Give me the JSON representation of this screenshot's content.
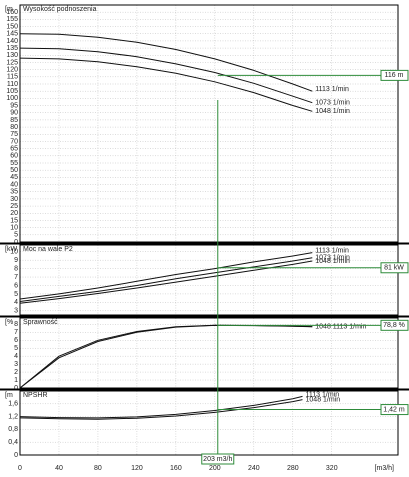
{
  "chart_data": [
    {
      "type": "line",
      "title": "Wysokość podnoszenia",
      "ylabel": "[m",
      "xlim": [
        0,
        388
      ],
      "ylim": [
        0,
        165
      ],
      "yticks": [
        0,
        5,
        10,
        15,
        20,
        25,
        30,
        35,
        40,
        45,
        50,
        55,
        60,
        65,
        70,
        75,
        80,
        85,
        90,
        95,
        100,
        105,
        110,
        115,
        120,
        125,
        130,
        135,
        140,
        145,
        150,
        155,
        160
      ],
      "x": [
        0,
        40,
        80,
        120,
        160,
        200,
        240,
        280,
        300
      ],
      "series": [
        {
          "name": "1113 1/min",
          "color": "#111111",
          "values": [
            145,
            144.6,
            142.5,
            139,
            134,
            127.5,
            119.5,
            110,
            105
          ]
        },
        {
          "name": "1073 1/min",
          "color": "#111111",
          "values": [
            135,
            134.5,
            132.5,
            129,
            124,
            118,
            110.5,
            101.5,
            97
          ]
        },
        {
          "name": "1048 1/min",
          "color": "#111111",
          "values": [
            128,
            127.5,
            125.5,
            122,
            117.5,
            111.5,
            104,
            95,
            91
          ]
        }
      ],
      "op_y": 116,
      "op_y_label": "116 m"
    },
    {
      "type": "line",
      "title": "Moc na wale P2",
      "ylabel": "[kW",
      "xlim": [
        0,
        388
      ],
      "ylim": [
        25,
        108
      ],
      "yticks": [
        {
          "value": 30,
          "label": "3"
        },
        {
          "value": 40,
          "label": "4"
        },
        {
          "value": 50,
          "label": "5"
        },
        {
          "value": 60,
          "label": "6"
        },
        {
          "value": 70,
          "label": "7"
        },
        {
          "value": 80,
          "label": "8"
        },
        {
          "value": 90,
          "label": "9"
        },
        {
          "value": 100,
          "label": "10"
        }
      ],
      "x": [
        0,
        40,
        80,
        120,
        160,
        200,
        240,
        280,
        300
      ],
      "series": [
        {
          "name": "1113 1/min",
          "color": "#111111",
          "values": [
            44,
            50,
            57,
            65,
            73,
            80,
            88,
            95,
            99
          ]
        },
        {
          "name": "1073 1/min",
          "color": "#111111",
          "values": [
            41,
            47,
            53,
            60,
            68,
            75,
            82,
            89,
            93
          ]
        },
        {
          "name": "1048 1/min",
          "color": "#111111",
          "values": [
            39,
            44.5,
            50.5,
            57,
            64,
            71,
            78,
            85,
            89
          ]
        }
      ],
      "op_y": 81,
      "op_y_label": "81 kW"
    },
    {
      "type": "line",
      "title": "Sprawność",
      "ylabel": "[%",
      "xlim": [
        0,
        388
      ],
      "ylim": [
        0,
        88
      ],
      "yticks": [
        0,
        {
          "value": 10,
          "label": "1"
        },
        {
          "value": 20,
          "label": "2"
        },
        {
          "value": 30,
          "label": "3"
        },
        {
          "value": 40,
          "label": "4"
        },
        {
          "value": 50,
          "label": "5"
        },
        {
          "value": 60,
          "label": "6"
        },
        {
          "value": 70,
          "label": "7"
        },
        {
          "value": 80,
          "label": "8"
        }
      ],
      "x": [
        0,
        40,
        80,
        120,
        160,
        200,
        240,
        280,
        300
      ],
      "series": [
        {
          "color": "#111111",
          "values": [
            0,
            40,
            60,
            71,
            77,
            78.8,
            78.6,
            77.8,
            77.2
          ]
        },
        {
          "color": "#111111",
          "values": [
            0,
            38,
            58.5,
            70,
            76.5,
            78.7,
            78.5,
            77.7,
            77
          ]
        }
      ],
      "curve_label": "1048 1113 1/min",
      "op_y": 78.8,
      "op_y_label": "78,8 %"
    },
    {
      "type": "line",
      "title": "NPSHR",
      "ylabel": "[m",
      "xlim": [
        0,
        388
      ],
      "ylim": [
        0,
        2
      ],
      "yticks": [
        0,
        {
          "value": 0.4,
          "label": "0,4"
        },
        {
          "value": 0.8,
          "label": "0,8"
        },
        {
          "value": 1.2,
          "label": "1,2"
        },
        {
          "value": 1.6,
          "label": "1,6"
        }
      ],
      "x": [
        0,
        40,
        80,
        120,
        160,
        200,
        240,
        280,
        290
      ],
      "series": [
        {
          "name": "1113 1/min",
          "color": "#111111",
          "values": [
            1.2,
            1.17,
            1.16,
            1.19,
            1.27,
            1.39,
            1.55,
            1.76,
            1.83
          ]
        },
        {
          "name": "1048 1/min",
          "color": "#111111",
          "values": [
            1.16,
            1.13,
            1.12,
            1.15,
            1.22,
            1.33,
            1.48,
            1.67,
            1.73
          ]
        }
      ],
      "op_y": 1.42,
      "op_y_label": "1,42 m",
      "xticks": [
        0,
        40,
        80,
        120,
        160,
        200,
        240,
        280,
        320
      ],
      "xlabel": "[m3/h]",
      "op_x": 203,
      "op_x_label": "203 m3/h"
    }
  ]
}
